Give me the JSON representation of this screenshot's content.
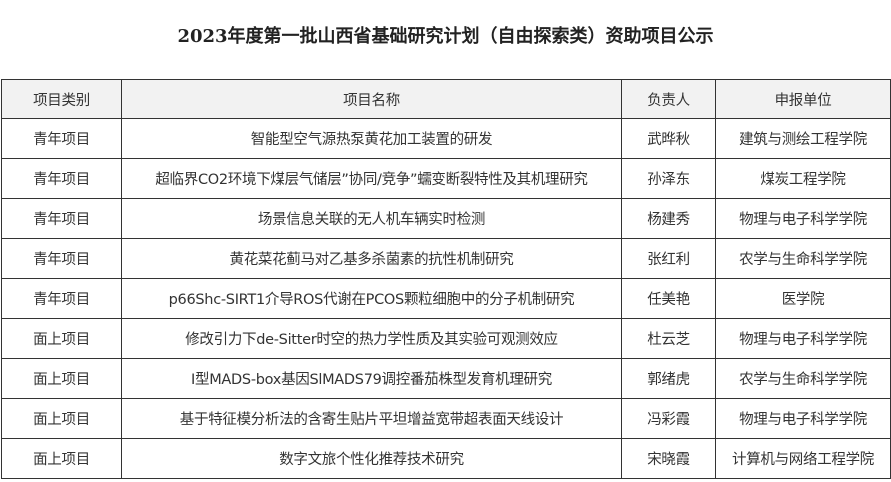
{
  "title": "2023年度第一批山西省基础研究计划（自由探索类）资助项目公示",
  "table": {
    "headers": [
      "项目类别",
      "项目名称",
      "负责人",
      "申报单位"
    ],
    "rows": [
      [
        "青年项目",
        "智能型空气源热泵黄花加工装置的研发",
        "武晔秋",
        "建筑与测绘工程学院"
      ],
      [
        "青年项目",
        "超临界CO2环境下煤层气储层”协同/竞争”蠕变断裂特性及其机理研究",
        "孙泽东",
        "煤炭工程学院"
      ],
      [
        "青年项目",
        "场景信息关联的无人机车辆实时检测",
        "杨建秀",
        "物理与电子科学学院"
      ],
      [
        "青年项目",
        "黄花菜花蓟马对乙基多杀菌素的抗性机制研究",
        "张红利",
        "农学与生命科学学院"
      ],
      [
        "青年项目",
        "p66Shc-SIRT1介导ROS代谢在PCOS颗粒细胞中的分子机制研究",
        "任美艳",
        "医学院"
      ],
      [
        "面上项目",
        "修改引力下de-Sitter时空的热力学性质及其实验可观测效应",
        "杜云芝",
        "物理与电子科学学院"
      ],
      [
        "面上项目",
        "I型MADS-box基因SlMADS79调控番茄株型发育机理研究",
        "郭绪虎",
        "农学与生命科学学院"
      ],
      [
        "面上项目",
        "基于特征模分析法的含寄生贴片平坦增益宽带超表面天线设计",
        "冯彩霞",
        "物理与电子科学学院"
      ],
      [
        "面上项目",
        "数字文旅个性化推荐技术研究",
        "宋晓霞",
        "计算机与网络工程学院"
      ]
    ]
  }
}
